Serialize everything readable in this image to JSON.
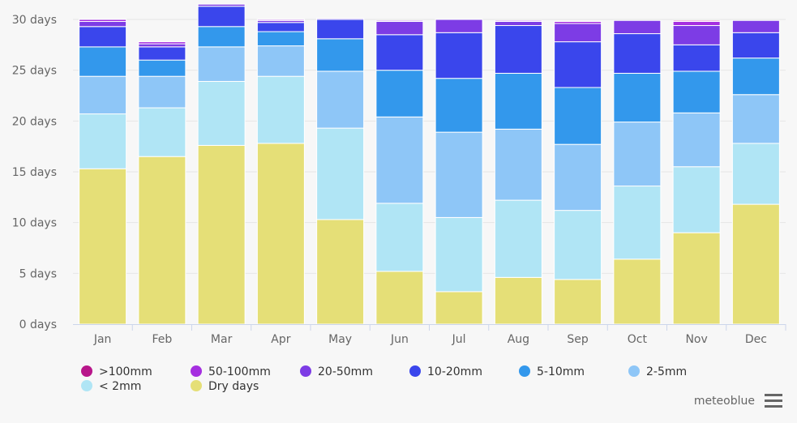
{
  "chart_data": {
    "type": "bar",
    "stacked": true,
    "categories": [
      "Jan",
      "Feb",
      "Mar",
      "Apr",
      "May",
      "Jun",
      "Jul",
      "Aug",
      "Sep",
      "Oct",
      "Nov",
      "Dec"
    ],
    "y_tick_labels": [
      "0 days",
      "5 days",
      "10 days",
      "15 days",
      "20 days",
      "25 days",
      "30 days"
    ],
    "ylim": [
      0,
      30
    ],
    "grid": true,
    "legend_position": "bottom",
    "series": [
      {
        "name": "Dry days",
        "color": "#e5df77",
        "values": [
          15.3,
          16.5,
          17.6,
          17.8,
          10.3,
          5.2,
          3.2,
          4.6,
          4.4,
          6.4,
          9.0,
          11.8
        ]
      },
      {
        "name": "< 2mm",
        "color": "#b0e5f5",
        "values": [
          5.4,
          4.8,
          6.3,
          6.6,
          9.0,
          6.7,
          7.3,
          7.6,
          6.8,
          7.2,
          6.5,
          6.0
        ]
      },
      {
        "name": "2-5mm",
        "color": "#8ec6f7",
        "values": [
          3.7,
          3.1,
          3.4,
          3.0,
          5.6,
          8.5,
          8.4,
          7.0,
          6.5,
          6.3,
          5.3,
          4.8
        ]
      },
      {
        "name": "5-10mm",
        "color": "#3398ec",
        "values": [
          2.9,
          1.6,
          2.0,
          1.4,
          3.2,
          4.6,
          5.3,
          5.5,
          5.6,
          4.8,
          4.1,
          3.6
        ]
      },
      {
        "name": "10-20mm",
        "color": "#3a46ec",
        "values": [
          2.0,
          1.3,
          2.0,
          0.9,
          1.9,
          3.5,
          4.5,
          4.7,
          4.5,
          3.9,
          2.6,
          2.5
        ]
      },
      {
        "name": "20-50mm",
        "color": "#7d3ce5",
        "values": [
          0.5,
          0.3,
          0.2,
          0.2,
          0.1,
          1.3,
          1.3,
          0.4,
          1.8,
          1.3,
          1.9,
          1.2
        ]
      },
      {
        "name": "50-100mm",
        "color": "#a52fe0",
        "values": [
          0.2,
          0.2,
          0.0,
          0.1,
          0.0,
          0.1,
          0.0,
          0.1,
          0.2,
          0.0,
          0.4,
          0.0
        ]
      },
      {
        "name": ">100mm",
        "color": "#b8168a",
        "values": [
          0.0,
          0.0,
          0.0,
          0.0,
          0.0,
          0.0,
          0.0,
          0.0,
          0.0,
          0.0,
          0.1,
          0.0
        ]
      }
    ],
    "legend_order": [
      ">100mm",
      "50-100mm",
      "20-50mm",
      "10-20mm",
      "5-10mm",
      "2-5mm",
      "< 2mm",
      "Dry days"
    ]
  },
  "credits": "meteoblue",
  "menu_icon": "hamburger-icon"
}
